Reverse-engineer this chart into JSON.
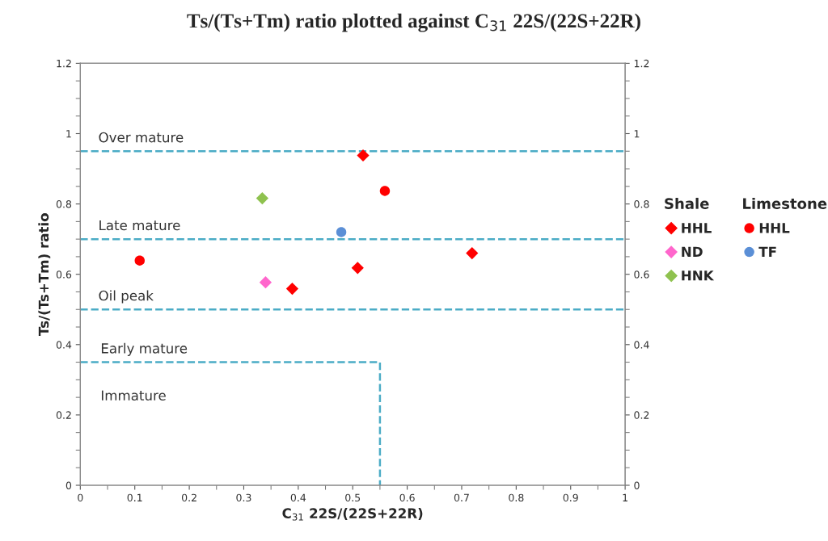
{
  "chart_data": {
    "type": "scatter",
    "title": "Ts/(Ts+Tm) ratio plotted against C$_{31}$ 22S/(22S+22R)",
    "xlabel": "C$_{31}$ 22S/(22S+22R)",
    "ylabel": "Ts/(Ts+Tm) ratio",
    "xlim": [
      0,
      1
    ],
    "xticks": [
      0,
      0.1,
      0.2,
      0.3,
      0.4,
      0.5,
      0.6,
      0.7,
      0.8,
      0.9,
      1
    ],
    "ylim": [
      0,
      1.2
    ],
    "yticks": [
      0,
      0.2,
      0.4,
      0.6,
      0.8,
      1,
      1.2
    ],
    "y2lim": [
      0,
      1.2
    ],
    "y2ticks": [
      0,
      0.2,
      0.4,
      0.6,
      0.8,
      1,
      1.2
    ],
    "grid": false,
    "legend": "right",
    "series": [
      {
        "name": "HHL",
        "color": "#ff0000",
        "marker": "diamond",
        "x": [
          0.519,
          0.509,
          0.719,
          0.389
        ],
        "values": [
          0.938,
          0.618,
          0.66,
          0.559
        ]
      },
      {
        "name": "ND",
        "color": "#ff66cc",
        "marker": "diamond",
        "x": [
          0.34
        ],
        "values": [
          0.577
        ]
      },
      {
        "name": "HNK",
        "color": "#8fc24f",
        "marker": "diamond",
        "x": [
          0.334
        ],
        "values": [
          0.816
        ]
      },
      {
        "name": "HHL",
        "color": "#ff0000",
        "marker": "circle",
        "x": [
          0.109,
          0.559
        ],
        "values": [
          0.639,
          0.837
        ]
      },
      {
        "name": "TF",
        "color": "#5b8fd6",
        "marker": "circle",
        "x": [
          0.479
        ],
        "values": [
          0.72
        ]
      },
      {
        "type": "line",
        "color": "#4bacc6",
        "line_style": "dashed",
        "marker": "none",
        "x": [
          0,
          0.55,
          0.55
        ],
        "values": [
          0.35,
          0.35,
          0
        ]
      }
    ],
    "ref_lines": [
      {
        "axis": "y",
        "value": 0.95,
        "label": "Over mature",
        "color": "#4bacc6",
        "line_style": "dashed"
      },
      {
        "axis": "y",
        "value": 0.7,
        "label": "Late mature",
        "color": "#4bacc6",
        "line_style": "dashed"
      },
      {
        "axis": "y",
        "value": 0.5,
        "label": "Oil peak",
        "color": "#4bacc6",
        "line_style": "dashed"
      }
    ],
    "annotations": [
      "Early mature",
      "Immature",
      "Shale",
      "Limestone"
    ]
  }
}
